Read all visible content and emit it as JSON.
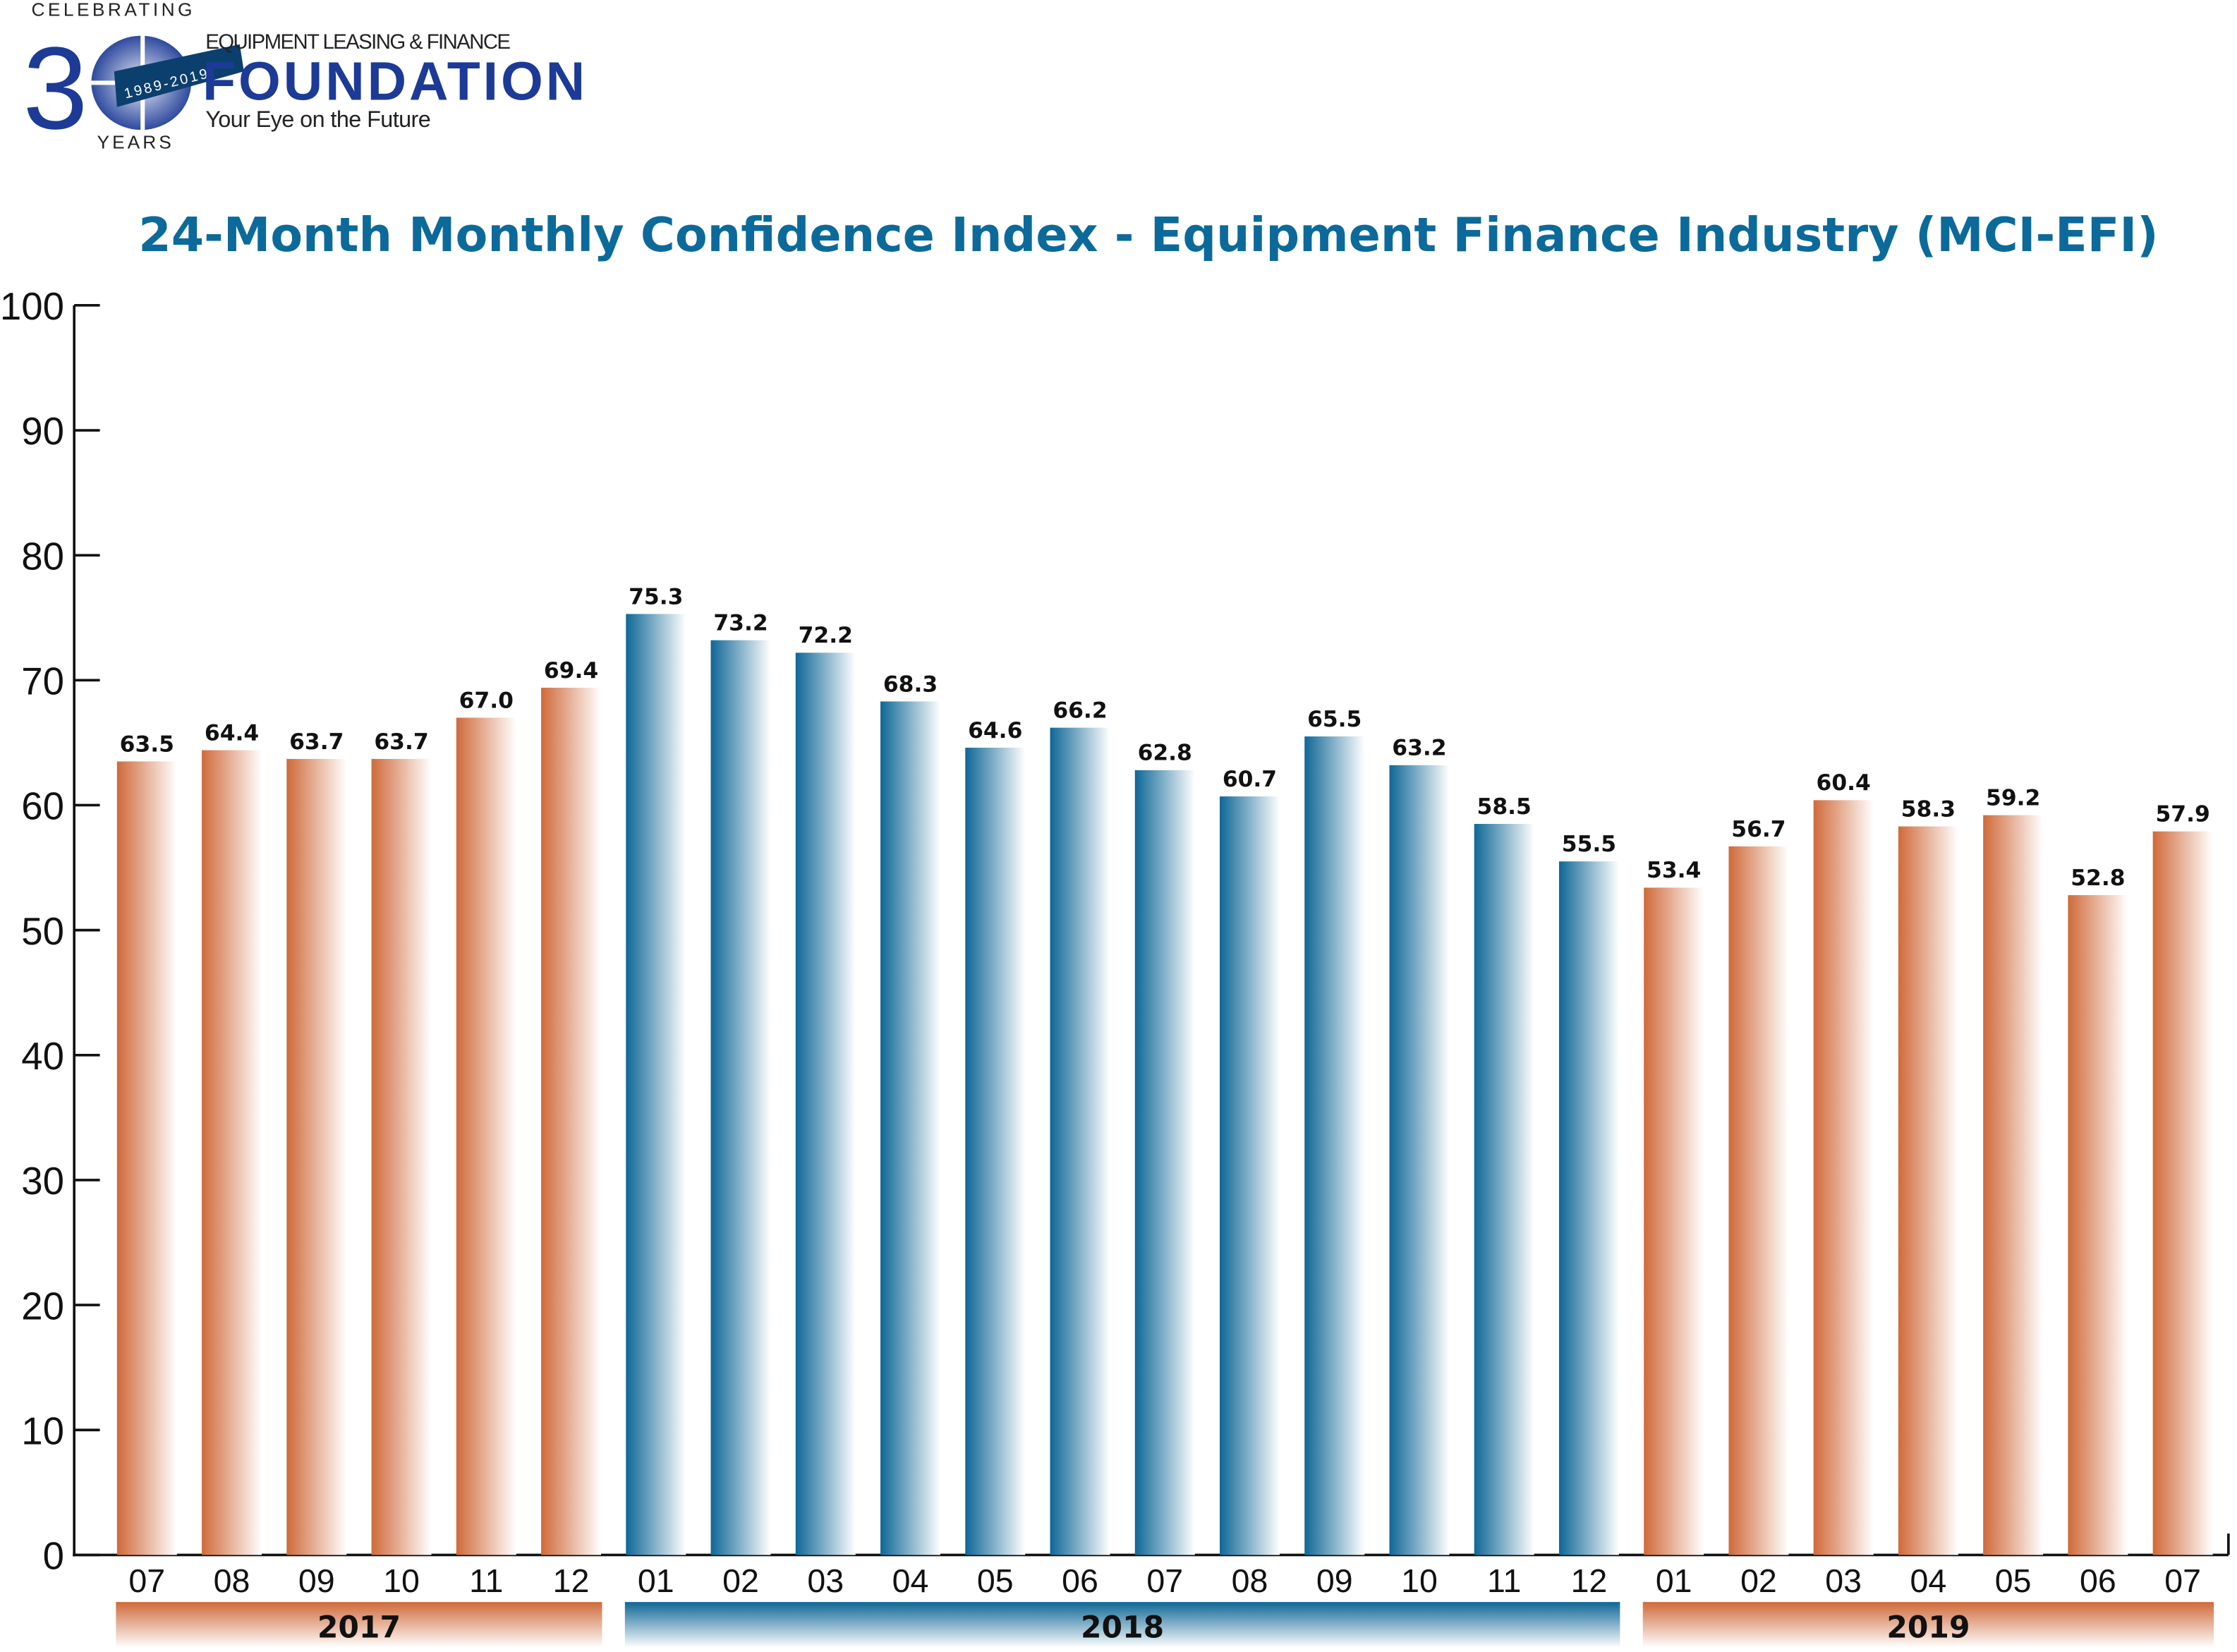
{
  "logo": {
    "celebrating": "CELEBRATING",
    "years": "YEARS",
    "number": "30",
    "span": "1989-2019",
    "org_line": "EQUIPMENT LEASING & FINANCE",
    "org_name": "FOUNDATION",
    "tagline": "Your Eye on the Future"
  },
  "colors": {
    "year_2017": "#cf6a3a",
    "year_2018": "#0e6796",
    "year_2019": "#cf6a3a",
    "title": "#0b6a9a"
  },
  "chart_data": {
    "type": "bar",
    "title": "24-Month Monthly Confidence Index - Equipment Finance Industry (MCI-EFI)",
    "xlabel": "",
    "ylabel": "",
    "ylim": [
      0,
      100
    ],
    "yticks": [
      "0",
      "10",
      "20",
      "30",
      "40",
      "50",
      "60",
      "70",
      "80",
      "90",
      "100"
    ],
    "grid": false,
    "categories": [
      "07",
      "08",
      "09",
      "10",
      "11",
      "12",
      "01",
      "02",
      "03",
      "04",
      "05",
      "06",
      "07",
      "08",
      "09",
      "10",
      "11",
      "12",
      "01",
      "02",
      "03",
      "04",
      "05",
      "06",
      "07"
    ],
    "years": [
      {
        "label": "2017",
        "count": 6,
        "color": "#cf6a3a"
      },
      {
        "label": "2018",
        "count": 12,
        "color": "#0e6796"
      },
      {
        "label": "2019",
        "count": 7,
        "color": "#cf6a3a"
      }
    ],
    "values": [
      63.5,
      64.4,
      63.7,
      63.7,
      67.0,
      69.4,
      75.3,
      73.2,
      72.2,
      68.3,
      64.6,
      66.2,
      62.8,
      60.7,
      65.5,
      63.2,
      58.5,
      55.5,
      53.4,
      56.7,
      60.4,
      58.3,
      59.2,
      52.8,
      57.9
    ],
    "value_labels": [
      "63.5",
      "64.4",
      "63.7",
      "63.7",
      "67.0",
      "69.4",
      "75.3",
      "73.2",
      "72.2",
      "68.3",
      "64.6",
      "66.2",
      "62.8",
      "60.7",
      "65.5",
      "63.2",
      "58.5",
      "55.5",
      "53.4",
      "56.7",
      "60.4",
      "58.3",
      "59.2",
      "52.8",
      "57.9"
    ]
  }
}
